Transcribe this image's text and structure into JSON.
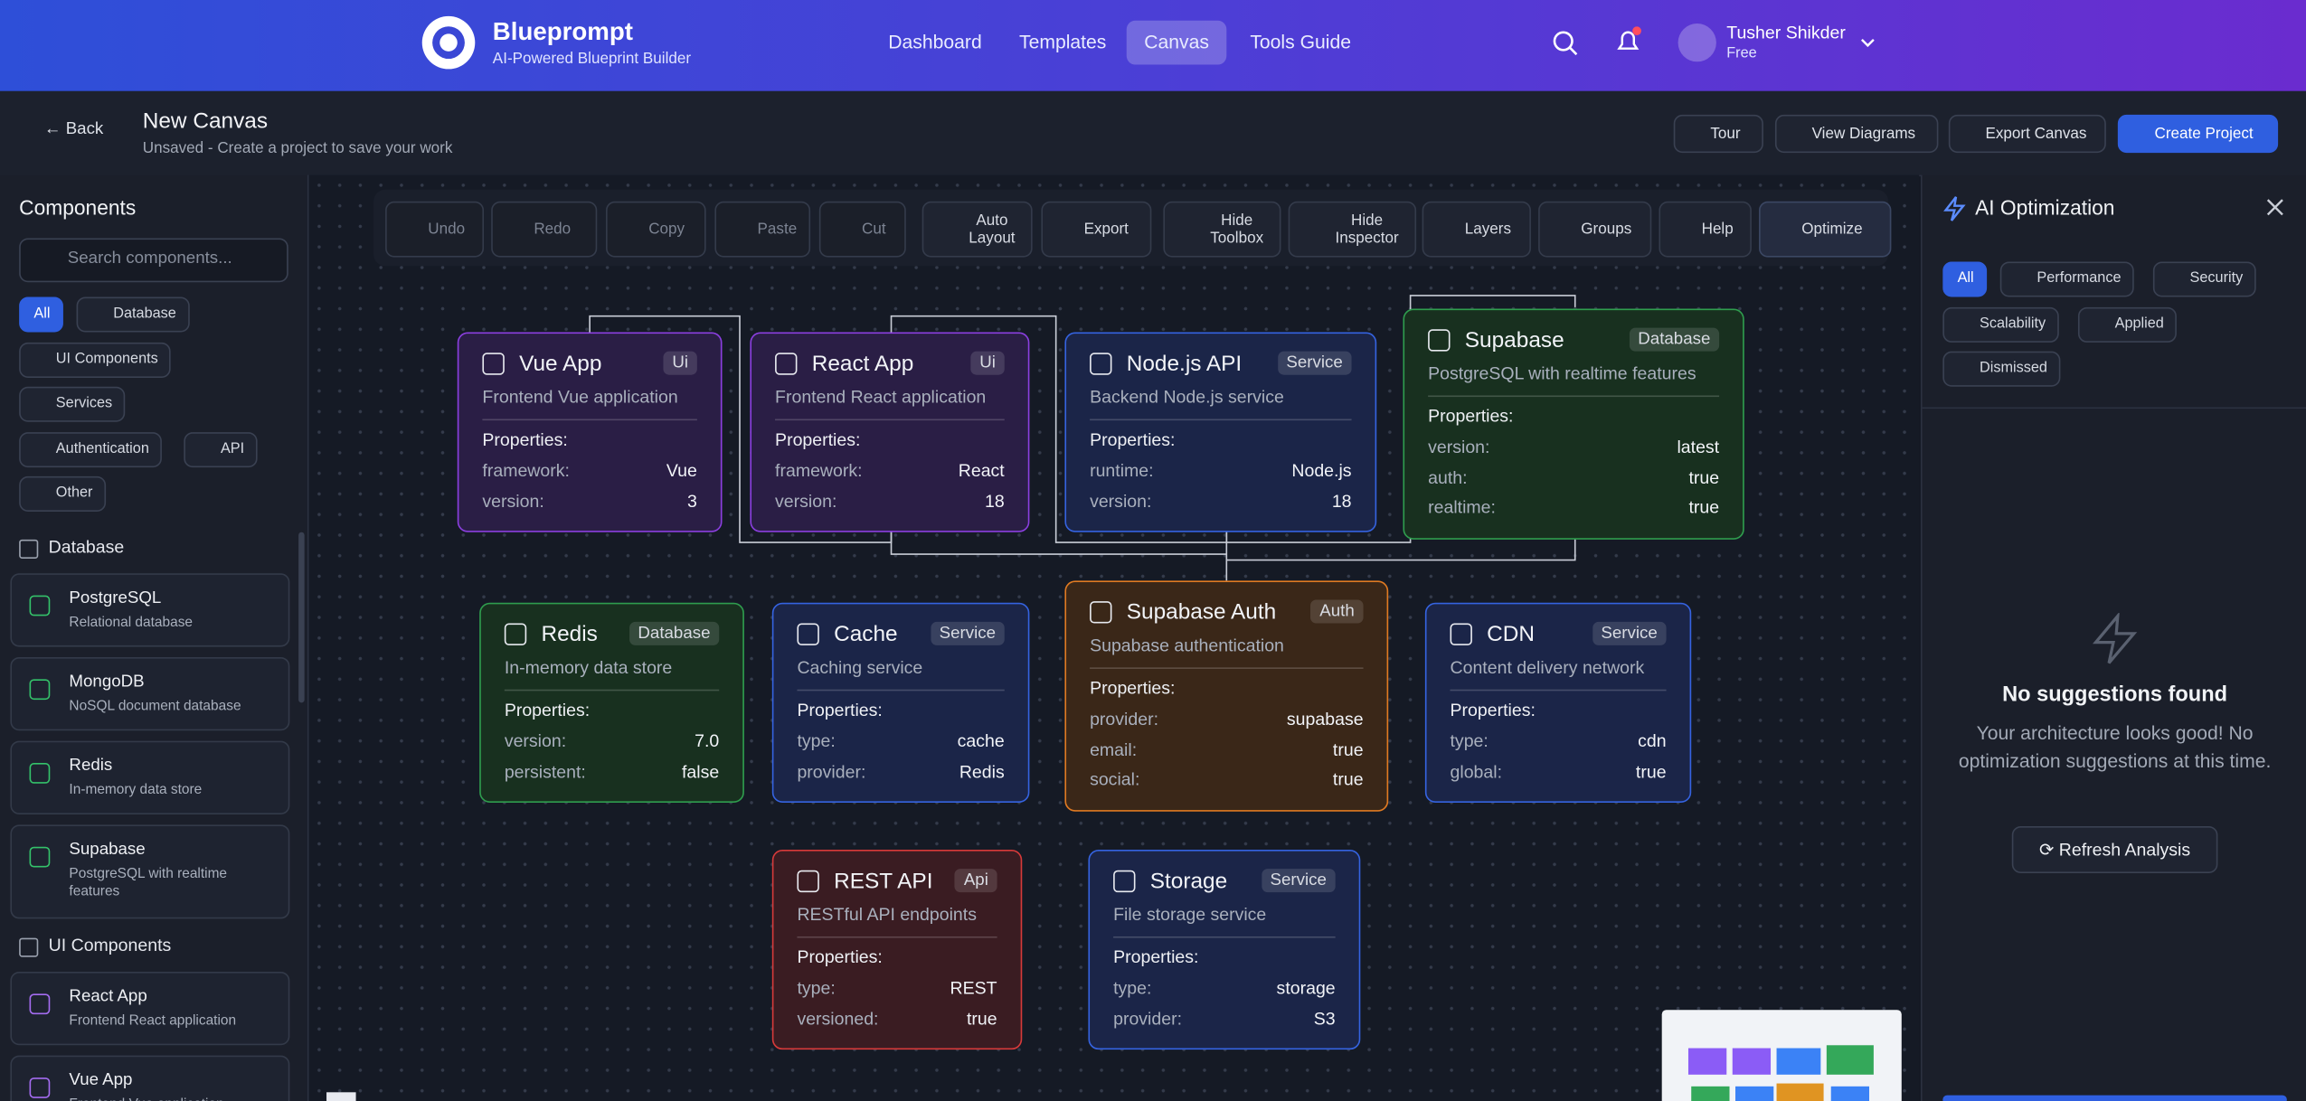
{
  "header": {
    "brand": "Blueprompt",
    "tagline": "AI-Powered Blueprint Builder",
    "nav": [
      "Dashboard",
      "Templates",
      "Canvas",
      "Tools Guide"
    ],
    "user_name": "Tusher Shikder",
    "user_plan": "Free"
  },
  "subheader": {
    "back": "Back",
    "title": "New Canvas",
    "subtitle": "Unsaved - Create a project to save your work",
    "actions": [
      "Tour",
      "View Diagrams",
      "Export Canvas",
      "Create Project"
    ]
  },
  "sidebar": {
    "title": "Components",
    "search_placeholder": "Search components...",
    "filters": [
      "All",
      "Database",
      "UI Components",
      "Services",
      "Authentication",
      "API",
      "Other"
    ],
    "sections": [
      {
        "title": "Database",
        "items": [
          {
            "name": "PostgreSQL",
            "desc": "Relational database"
          },
          {
            "name": "MongoDB",
            "desc": "NoSQL document database"
          },
          {
            "name": "Redis",
            "desc": "In-memory data store"
          },
          {
            "name": "Supabase",
            "desc": "PostgreSQL with realtime features"
          }
        ]
      },
      {
        "title": "UI Components",
        "items": [
          {
            "name": "React App",
            "desc": "Frontend React application"
          },
          {
            "name": "Vue App",
            "desc": "Frontend Vue application"
          }
        ]
      }
    ]
  },
  "toolbar": [
    "Undo",
    "Redo",
    "Copy",
    "Paste",
    "Cut",
    "Auto Layout",
    "Export",
    "Hide Toolbox",
    "Hide Inspector",
    "Layers",
    "Groups",
    "Help",
    "Optimize"
  ],
  "nodes": [
    {
      "title": "Vue App",
      "badge": "Ui",
      "desc": "Frontend Vue application",
      "props_label": "Properties:",
      "props": [
        {
          "k": "framework:",
          "v": "Vue"
        },
        {
          "k": "version:",
          "v": "3"
        }
      ]
    },
    {
      "title": "React App",
      "badge": "Ui",
      "desc": "Frontend React application",
      "props_label": "Properties:",
      "props": [
        {
          "k": "framework:",
          "v": "React"
        },
        {
          "k": "version:",
          "v": "18"
        }
      ]
    },
    {
      "title": "Node.js API",
      "badge": "Service",
      "desc": "Backend Node.js service",
      "props_label": "Properties:",
      "props": [
        {
          "k": "runtime:",
          "v": "Node.js"
        },
        {
          "k": "version:",
          "v": "18"
        }
      ]
    },
    {
      "title": "Supabase",
      "badge": "Database",
      "desc": "PostgreSQL with realtime features",
      "props_label": "Properties:",
      "props": [
        {
          "k": "version:",
          "v": "latest"
        },
        {
          "k": "auth:",
          "v": "true"
        },
        {
          "k": "realtime:",
          "v": "true"
        }
      ]
    },
    {
      "title": "Redis",
      "badge": "Database",
      "desc": "In-memory data store",
      "props_label": "Properties:",
      "props": [
        {
          "k": "version:",
          "v": "7.0"
        },
        {
          "k": "persistent:",
          "v": "false"
        }
      ]
    },
    {
      "title": "Cache",
      "badge": "Service",
      "desc": "Caching service",
      "props_label": "Properties:",
      "props": [
        {
          "k": "type:",
          "v": "cache"
        },
        {
          "k": "provider:",
          "v": "Redis"
        }
      ]
    },
    {
      "title": "Supabase Auth",
      "badge": "Auth",
      "desc": "Supabase authentication",
      "props_label": "Properties:",
      "props": [
        {
          "k": "provider:",
          "v": "supabase"
        },
        {
          "k": "email:",
          "v": "true"
        },
        {
          "k": "social:",
          "v": "true"
        }
      ]
    },
    {
      "title": "CDN",
      "badge": "Service",
      "desc": "Content delivery network",
      "props_label": "Properties:",
      "props": [
        {
          "k": "type:",
          "v": "cdn"
        },
        {
          "k": "global:",
          "v": "true"
        }
      ]
    },
    {
      "title": "REST API",
      "badge": "Api",
      "desc": "RESTful API endpoints",
      "props_label": "Properties:",
      "props": [
        {
          "k": "type:",
          "v": "REST"
        },
        {
          "k": "versioned:",
          "v": "true"
        }
      ]
    },
    {
      "title": "Storage",
      "badge": "Service",
      "desc": "File storage service",
      "props_label": "Properties:",
      "props": [
        {
          "k": "type:",
          "v": "storage"
        },
        {
          "k": "provider:",
          "v": "S3"
        }
      ]
    }
  ],
  "panel": {
    "title": "AI Optimization",
    "filters": [
      "All",
      "Performance",
      "Security",
      "Scalability",
      "Applied",
      "Dismissed"
    ],
    "empty_title": "No suggestions found",
    "empty_text": "Your architecture looks good! No optimization suggestions at this time.",
    "refresh": "Refresh Analysis"
  }
}
